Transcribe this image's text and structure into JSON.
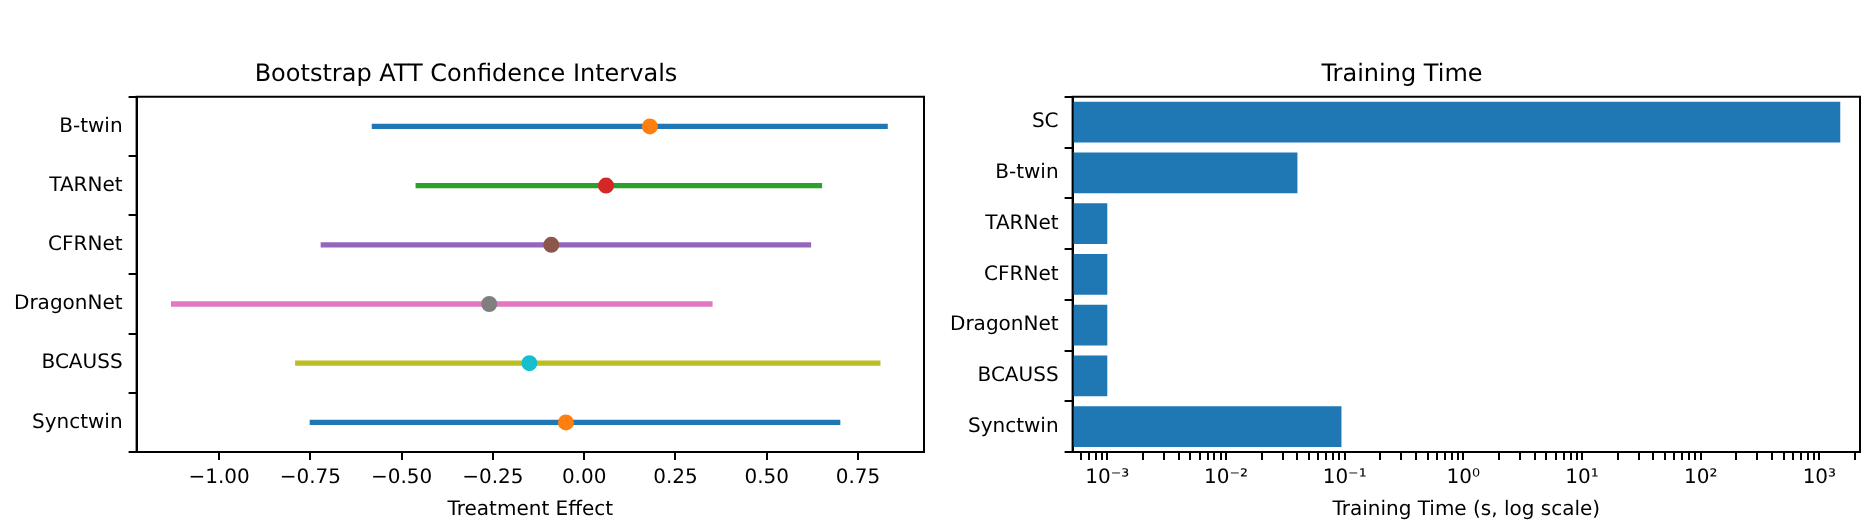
{
  "chart_data": [
    {
      "type": "bar",
      "orientation": "horizontal",
      "title": "Bootstrap ATT Confidence Intervals",
      "xlabel": "Treatment Effect",
      "categories": [
        "B-twin",
        "TARNet",
        "CFRNet",
        "DragonNet",
        "BCAUSS",
        "Synctwin"
      ],
      "series": [
        {
          "type": "bar",
          "base": [
            -0.58,
            -0.46,
            -0.72,
            -1.13,
            -0.79,
            -0.75
          ],
          "values": [
            1.41,
            1.11,
            1.34,
            1.48,
            1.6,
            1.45
          ],
          "colors": [
            "#1f77b4",
            "#2ca02c",
            "#9467bd",
            "#e377c2",
            "#bcbd22",
            "#1f77b4"
          ]
        },
        {
          "type": "scatter",
          "values": [
            0.18,
            0.06,
            -0.09,
            -0.26,
            -0.15,
            -0.05
          ],
          "colors": [
            "#ff7f0e",
            "#d62728",
            "#8c564b",
            "#7f7f7f",
            "#17becf",
            "#ff7f0e"
          ]
        }
      ],
      "marker": "circle",
      "xlim": [
        -1.226,
        0.931
      ],
      "xticks": [
        {
          "value": -1,
          "label": "−1.00"
        },
        {
          "value": -0.75,
          "label": "−0.75"
        },
        {
          "value": -0.5,
          "label": "−0.50"
        },
        {
          "value": -0.25,
          "label": "−0.25"
        },
        {
          "value": 0,
          "label": "0.00"
        },
        {
          "value": 0.25,
          "label": "0.25"
        },
        {
          "value": 0.5,
          "label": "0.50"
        },
        {
          "value": 0.75,
          "label": "0.75"
        }
      ],
      "grid": false,
      "legend": false
    },
    {
      "type": "bar",
      "orientation": "horizontal",
      "title": "Training Time",
      "xlabel": "Training Time (s, log scale)",
      "categories": [
        "SC",
        "B-twin",
        "TARNet",
        "CFRNet",
        "DragonNet",
        "BCAUSS",
        "Synctwin"
      ],
      "series": [
        {
          "values": [
            1500,
            0.04,
            0.001,
            0.001,
            0.001,
            0.001,
            0.094
          ],
          "color": "#1f77b4"
        }
      ],
      "log": "x",
      "xlim": [
        0.00051,
        2200
      ],
      "xticks": [
        {
          "value": 0.0006,
          "label": null
        },
        {
          "value": 0.0007,
          "label": null
        },
        {
          "value": 0.0008,
          "label": null
        },
        {
          "value": 0.0009,
          "label": null
        },
        {
          "value": 0.001,
          "label": "10⁻³"
        },
        {
          "value": 0.002,
          "label": null
        },
        {
          "value": 0.003,
          "label": null
        },
        {
          "value": 0.004,
          "label": null
        },
        {
          "value": 0.005,
          "label": null
        },
        {
          "value": 0.006,
          "label": null
        },
        {
          "value": 0.007,
          "label": null
        },
        {
          "value": 0.008,
          "label": null
        },
        {
          "value": 0.009,
          "label": null
        },
        {
          "value": 0.01,
          "label": "10⁻²"
        },
        {
          "value": 0.02,
          "label": null
        },
        {
          "value": 0.03,
          "label": null
        },
        {
          "value": 0.04,
          "label": null
        },
        {
          "value": 0.05,
          "label": null
        },
        {
          "value": 0.06,
          "label": null
        },
        {
          "value": 0.07,
          "label": null
        },
        {
          "value": 0.08,
          "label": null
        },
        {
          "value": 0.09,
          "label": null
        },
        {
          "value": 0.1,
          "label": "10⁻¹"
        },
        {
          "value": 0.2,
          "label": null
        },
        {
          "value": 0.3,
          "label": null
        },
        {
          "value": 0.4,
          "label": null
        },
        {
          "value": 0.5,
          "label": null
        },
        {
          "value": 0.6,
          "label": null
        },
        {
          "value": 0.7,
          "label": null
        },
        {
          "value": 0.8,
          "label": null
        },
        {
          "value": 0.9,
          "label": null
        },
        {
          "value": 1,
          "label": "10⁰"
        },
        {
          "value": 2,
          "label": null
        },
        {
          "value": 3,
          "label": null
        },
        {
          "value": 4,
          "label": null
        },
        {
          "value": 5,
          "label": null
        },
        {
          "value": 6,
          "label": null
        },
        {
          "value": 7,
          "label": null
        },
        {
          "value": 8,
          "label": null
        },
        {
          "value": 9,
          "label": null
        },
        {
          "value": 10,
          "label": "10¹"
        },
        {
          "value": 20,
          "label": null
        },
        {
          "value": 30,
          "label": null
        },
        {
          "value": 40,
          "label": null
        },
        {
          "value": 50,
          "label": null
        },
        {
          "value": 60,
          "label": null
        },
        {
          "value": 70,
          "label": null
        },
        {
          "value": 80,
          "label": null
        },
        {
          "value": 90,
          "label": null
        },
        {
          "value": 100,
          "label": "10²"
        },
        {
          "value": 200,
          "label": null
        },
        {
          "value": 300,
          "label": null
        },
        {
          "value": 400,
          "label": null
        },
        {
          "value": 500,
          "label": null
        },
        {
          "value": 600,
          "label": null
        },
        {
          "value": 700,
          "label": null
        },
        {
          "value": 800,
          "label": null
        },
        {
          "value": 900,
          "label": null
        },
        {
          "value": 1000,
          "label": "10³"
        },
        {
          "value": 2000,
          "label": null
        }
      ],
      "grid": false,
      "legend": false
    }
  ]
}
